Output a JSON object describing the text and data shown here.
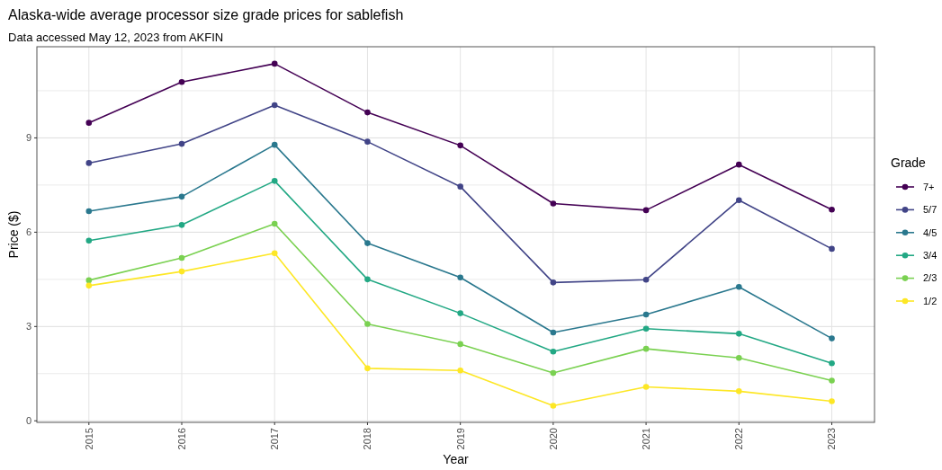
{
  "chart_data": {
    "type": "line",
    "title": "Alaska-wide average processor size grade prices for sablefish",
    "subtitle": "Data accessed May 12, 2023 from AKFIN",
    "xlabel": "Year",
    "ylabel": "Price ($)",
    "legend_title": "Grade",
    "x": [
      2015,
      2016,
      2017,
      2018,
      2019,
      2020,
      2021,
      2022,
      2023
    ],
    "series": [
      {
        "name": "7+",
        "color": "#440154",
        "values": [
          9.48,
          10.78,
          11.36,
          9.81,
          8.76,
          6.91,
          6.7,
          8.15,
          6.72
        ]
      },
      {
        "name": "5/7",
        "color": "#414487",
        "values": [
          8.2,
          8.81,
          10.04,
          8.88,
          7.45,
          4.4,
          4.49,
          7.02,
          5.47
        ]
      },
      {
        "name": "4/5",
        "color": "#2a788e",
        "values": [
          6.67,
          7.13,
          8.78,
          5.65,
          4.56,
          2.81,
          3.38,
          4.26,
          2.62
        ]
      },
      {
        "name": "3/4",
        "color": "#22a884",
        "values": [
          5.73,
          6.23,
          7.63,
          4.5,
          3.42,
          2.2,
          2.93,
          2.77,
          1.83
        ]
      },
      {
        "name": "2/3",
        "color": "#7ad151",
        "values": [
          4.47,
          5.18,
          6.27,
          3.08,
          2.44,
          1.52,
          2.29,
          2.0,
          1.28
        ]
      },
      {
        "name": "1/2",
        "color": "#fde725",
        "values": [
          4.3,
          4.75,
          5.33,
          1.67,
          1.6,
          0.48,
          1.08,
          0.94,
          0.62
        ]
      }
    ],
    "xlim": [
      2014.44,
      2023.46
    ],
    "xticks": [
      2015,
      2016,
      2017,
      2018,
      2019,
      2020,
      2021,
      2022,
      2023
    ],
    "ylim": [
      -0.05,
      11.9
    ],
    "yticks": [
      0,
      {
        "value": 1.5,
        "label": null
      },
      3,
      {
        "value": 4.5,
        "label": null
      },
      6,
      {
        "value": 7.5,
        "label": null
      },
      9,
      {
        "value": 10.5,
        "label": null
      }
    ],
    "grid": true,
    "legend": "right",
    "marker": "circle",
    "line_style": "solid"
  }
}
